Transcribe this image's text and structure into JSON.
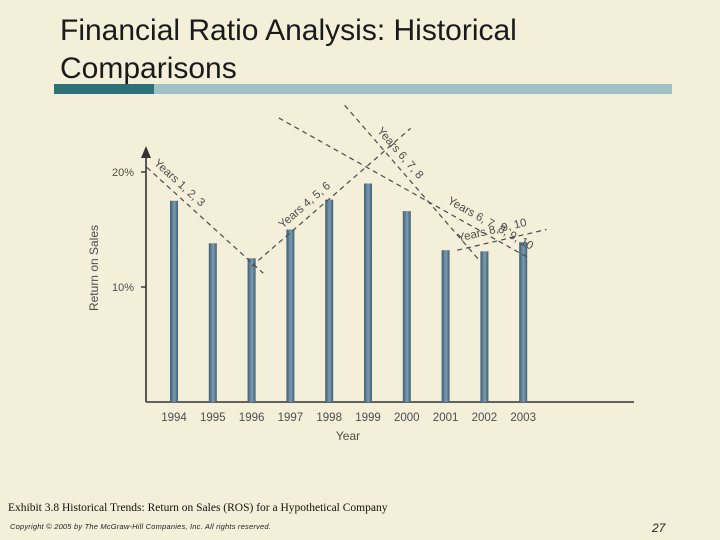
{
  "slide": {
    "title": "Financial Ratio Analysis: Historical Comparisons",
    "caption": "Exhibit 3.8 Historical Trends: Return on Sales (ROS) for a Hypothetical Company",
    "copyright": "Copyright © 2005 by The McGraw-Hill Companies, Inc.  All rights reserved.",
    "page_number": "27"
  },
  "colors": {
    "background": "#f4efd9",
    "accent_dark": "#2f6f76",
    "accent_light": "#9fc3c5",
    "bar": "#5e8299",
    "trend_line": "#4a4a4a",
    "chart_text": "#4d4d4d"
  },
  "chart_data": {
    "type": "bar",
    "title": "",
    "xlabel": "Year",
    "ylabel": "Return on Sales",
    "categories": [
      "1994",
      "1995",
      "1996",
      "1997",
      "1998",
      "1999",
      "2000",
      "2001",
      "2002",
      "2003"
    ],
    "values": [
      17.5,
      13.8,
      12.5,
      15.0,
      17.6,
      19.0,
      16.6,
      13.2,
      13.1,
      13.9
    ],
    "ylim": [
      0,
      23
    ],
    "yticks": [
      10,
      20
    ],
    "ytick_labels": [
      "10%",
      "20%"
    ],
    "trend_lines": [
      {
        "label": "Years 1, 2, 3",
        "from_year": 1993.3,
        "from_value": 20.4,
        "to_year": 1996.3,
        "to_value": 11.2
      },
      {
        "label": "Years 4, 5, 6",
        "from_year": 1996.0,
        "from_value": 11.8,
        "to_year": 2000.1,
        "to_value": 23.8
      },
      {
        "label": "Years 6, 7, 8",
        "from_year": 1998.4,
        "from_value": 25.8,
        "to_year": 2001.9,
        "to_value": 12.2
      },
      {
        "label": "Years 8, 9, 10",
        "from_year": 2001.3,
        "from_value": 13.2,
        "to_year": 2003.6,
        "to_value": 15.0
      },
      {
        "label": "Years 6, 7, 8, 9, 10",
        "from_year": 1996.7,
        "from_value": 24.7,
        "to_year": 2003.1,
        "to_value": 12.6
      }
    ]
  }
}
